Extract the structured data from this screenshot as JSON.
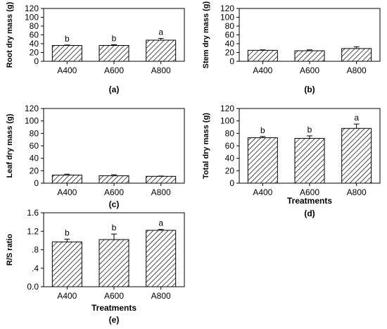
{
  "chart_data": [
    {
      "type": "bar",
      "panel_label": "(a)",
      "ylabel": "Root dry mass (g)",
      "xlabel": "",
      "categories": [
        "A400",
        "A600",
        "A800"
      ],
      "values": [
        36,
        36,
        48
      ],
      "errors": [
        1,
        1.5,
        4
      ],
      "significance": [
        "b",
        "b",
        "a"
      ],
      "ylim": [
        0,
        120
      ],
      "yticks": [
        "0",
        "20",
        "40",
        "60",
        "80",
        "100",
        "120"
      ],
      "grid": false
    },
    {
      "type": "bar",
      "panel_label": "(b)",
      "ylabel": "Stem dry mass (g)",
      "xlabel": "",
      "categories": [
        "A400",
        "A600",
        "A800"
      ],
      "values": [
        25,
        24,
        29
      ],
      "errors": [
        1,
        2,
        4
      ],
      "significance": [
        "",
        "",
        ""
      ],
      "ylim": [
        0,
        120
      ],
      "yticks": [
        "0",
        "20",
        "40",
        "60",
        "80",
        "100",
        "120"
      ],
      "grid": false
    },
    {
      "type": "bar",
      "panel_label": "(c)",
      "ylabel": "Leaf dry mass (g)",
      "xlabel": "",
      "categories": [
        "A400",
        "A600",
        "A800"
      ],
      "values": [
        13,
        12,
        11
      ],
      "errors": [
        1.5,
        1.5,
        0.5
      ],
      "significance": [
        "",
        "",
        ""
      ],
      "ylim": [
        0,
        120
      ],
      "yticks": [
        "0",
        "20",
        "40",
        "60",
        "80",
        "100",
        "120"
      ],
      "grid": false
    },
    {
      "type": "bar",
      "panel_label": "(d)",
      "ylabel": "Total dry mass (g)",
      "xlabel": "Treatments",
      "categories": [
        "A400",
        "A600",
        "A800"
      ],
      "values": [
        73,
        72,
        88
      ],
      "errors": [
        2,
        4,
        7
      ],
      "significance": [
        "b",
        "b",
        "a"
      ],
      "ylim": [
        0,
        120
      ],
      "yticks": [
        "0",
        "20",
        "40",
        "60",
        "80",
        "100",
        "120"
      ],
      "grid": false
    },
    {
      "type": "bar",
      "panel_label": "(e)",
      "ylabel": "R/S ratio",
      "xlabel": "Treatments",
      "categories": [
        "A400",
        "A600",
        "A800"
      ],
      "values": [
        0.97,
        1.02,
        1.22
      ],
      "errors": [
        0.06,
        0.12,
        0.02
      ],
      "significance": [
        "b",
        "b",
        "a"
      ],
      "ylim": [
        0,
        1.6
      ],
      "yticks": [
        "0.0",
        ".4",
        ".8",
        "1.2",
        "1.6"
      ],
      "grid": false
    }
  ]
}
